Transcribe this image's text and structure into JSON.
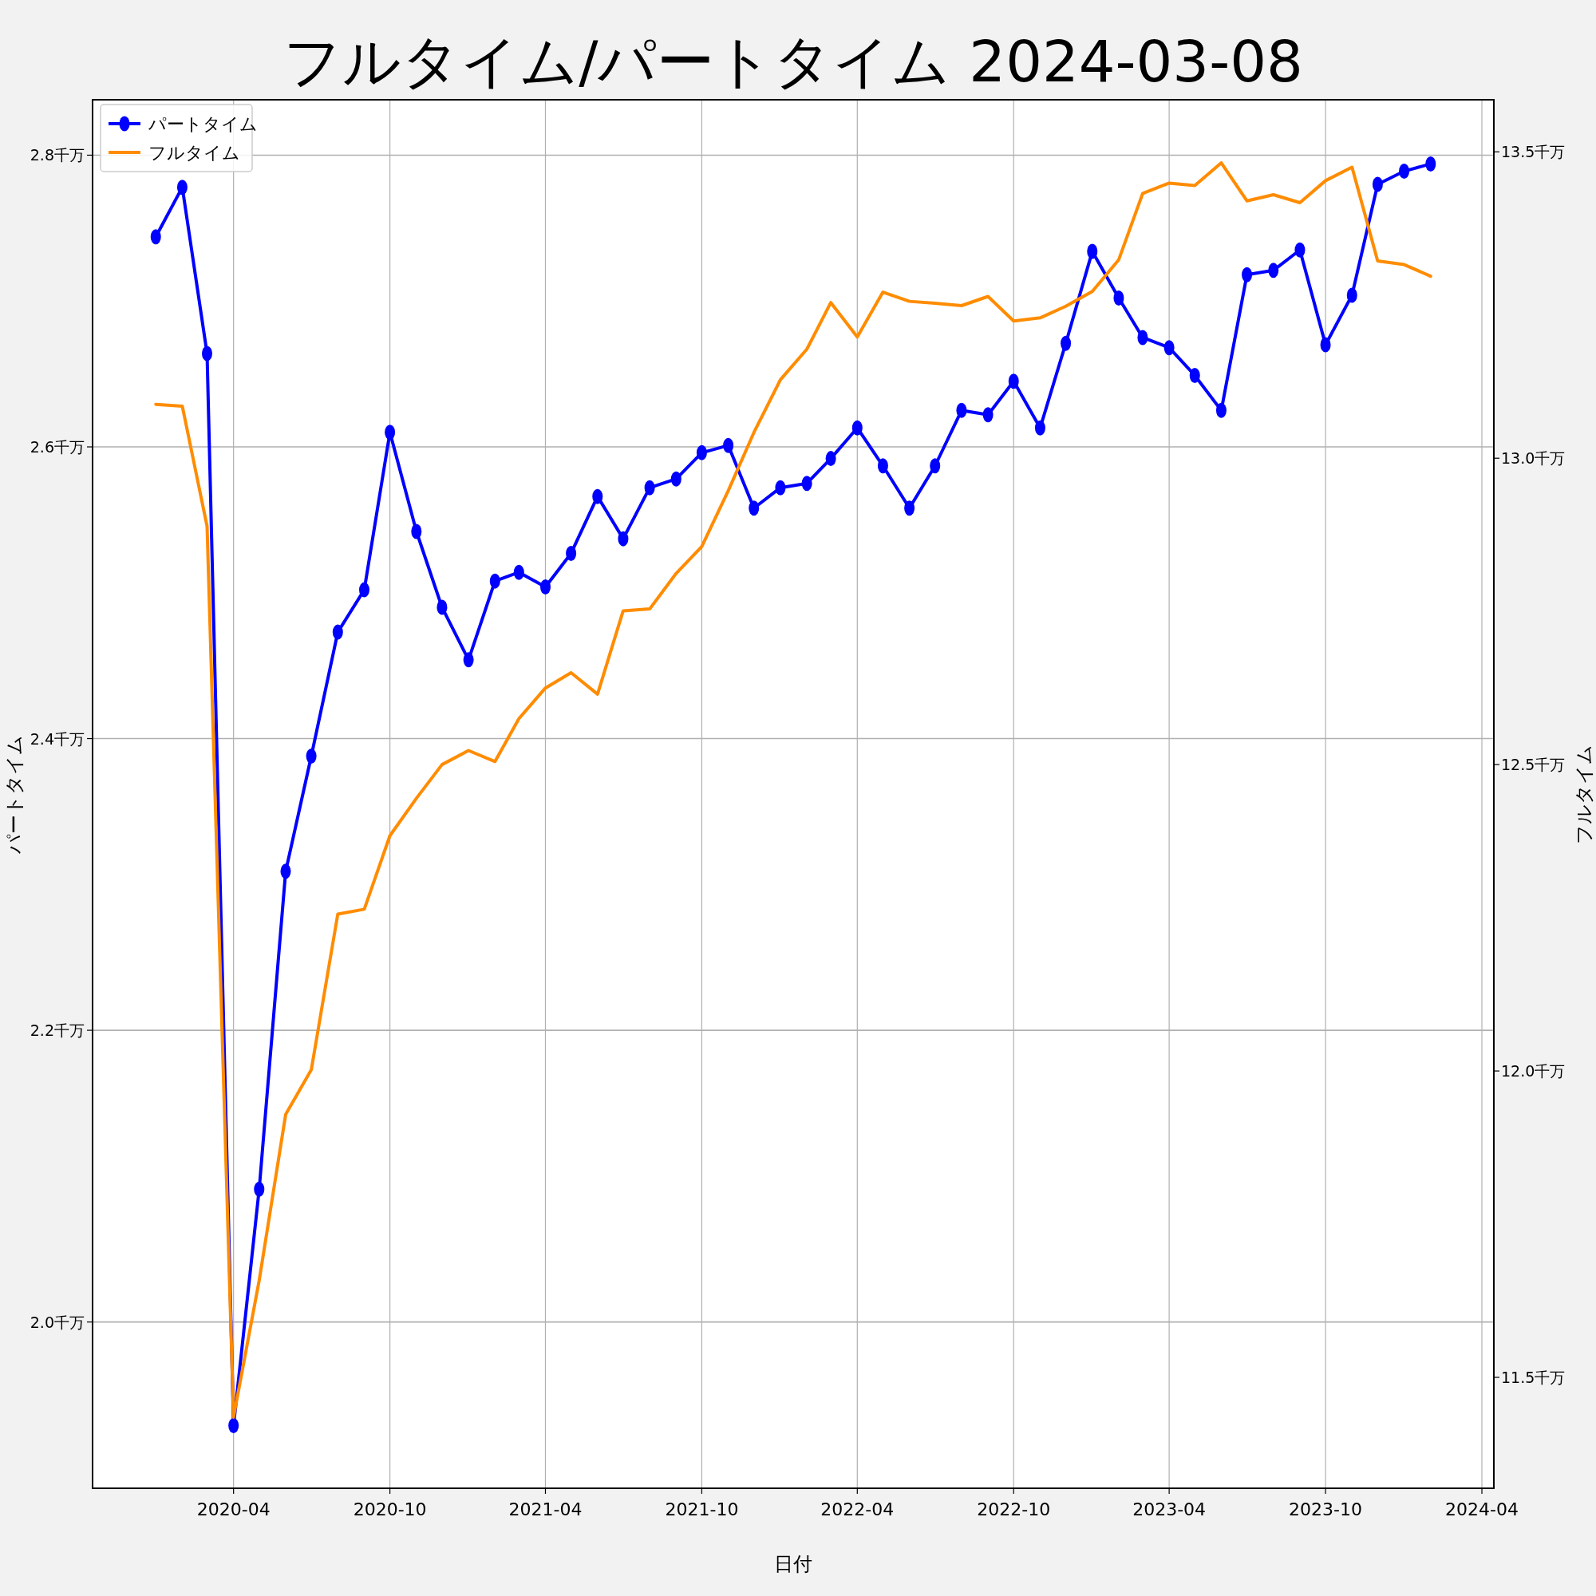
{
  "chart_data": {
    "type": "line",
    "title": "フルタイム/パートタイム 2024-03-08",
    "xlabel": "日付",
    "ylabel": "パートタイム",
    "y2label": "フルタイム",
    "x": [
      "2020-01",
      "2020-02",
      "2020-03",
      "2020-04",
      "2020-05",
      "2020-06",
      "2020-07",
      "2020-08",
      "2020-09",
      "2020-10",
      "2020-11",
      "2020-12",
      "2021-01",
      "2021-02",
      "2021-03",
      "2021-04",
      "2021-05",
      "2021-06",
      "2021-07",
      "2021-08",
      "2021-09",
      "2021-10",
      "2021-11",
      "2021-12",
      "2022-01",
      "2022-02",
      "2022-03",
      "2022-04",
      "2022-05",
      "2022-06",
      "2022-07",
      "2022-08",
      "2022-09",
      "2022-10",
      "2022-11",
      "2022-12",
      "2023-01",
      "2023-02",
      "2023-03",
      "2023-04",
      "2023-05",
      "2023-06",
      "2023-07",
      "2023-08",
      "2023-09",
      "2023-10",
      "2023-11",
      "2023-12",
      "2024-01",
      "2024-02"
    ],
    "series": [
      {
        "name": "パートタイム",
        "color": "#0000ff",
        "marker": "circle",
        "values": [
          2.744,
          2.778,
          2.664,
          1.929,
          2.091,
          2.309,
          2.388,
          2.473,
          2.502,
          2.61,
          2.542,
          2.49,
          2.454,
          2.508,
          2.514,
          2.504,
          2.527,
          2.566,
          2.537,
          2.572,
          2.578,
          2.596,
          2.601,
          2.558,
          2.572,
          2.575,
          2.592,
          2.613,
          2.587,
          2.558,
          2.587,
          2.625,
          2.622,
          2.645,
          2.613,
          2.671,
          2.734,
          2.702,
          2.675,
          2.668,
          2.649,
          2.625,
          2.718,
          2.721,
          2.735,
          2.67,
          2.704,
          2.78,
          2.789,
          2.794
        ]
      },
      {
        "name": "フルタイム",
        "color": "#ff8c00",
        "axis": "y2",
        "values": [
          13.088,
          13.085,
          12.889,
          11.435,
          11.658,
          11.929,
          12.002,
          12.256,
          12.264,
          12.384,
          12.445,
          12.5,
          12.523,
          12.505,
          12.575,
          12.625,
          12.65,
          12.615,
          12.751,
          12.754,
          12.812,
          12.856,
          12.947,
          13.042,
          13.128,
          13.178,
          13.254,
          13.198,
          13.271,
          13.256,
          13.253,
          13.249,
          13.264,
          13.224,
          13.229,
          13.248,
          13.272,
          13.324,
          13.432,
          13.449,
          13.445,
          13.482,
          13.42,
          13.43,
          13.417,
          13.453,
          13.475,
          13.322,
          13.316,
          13.297
        ]
      }
    ],
    "xlim": [
      "2019-10-19",
      "2024-04-15"
    ],
    "xticks": [
      "2020-04",
      "2020-10",
      "2021-04",
      "2021-10",
      "2022-04",
      "2022-10",
      "2023-04",
      "2023-10",
      "2024-04"
    ],
    "ylim": [
      1.886,
      2.838
    ],
    "yticks": [
      {
        "value": 2.0,
        "label": "2.0千万"
      },
      {
        "value": 2.2,
        "label": "2.2千万"
      },
      {
        "value": 2.4,
        "label": "2.4千万"
      },
      {
        "value": 2.6,
        "label": "2.6千万"
      },
      {
        "value": 2.8,
        "label": "2.8千万"
      }
    ],
    "y2lim": [
      11.319,
      13.585
    ],
    "y2ticks": [
      {
        "value": 11.5,
        "label": "11.5千万"
      },
      {
        "value": 12.0,
        "label": "12.0千万"
      },
      {
        "value": 12.5,
        "label": "12.5千万"
      },
      {
        "value": 13.0,
        "label": "13.0千万"
      },
      {
        "value": 13.5,
        "label": "13.5千万"
      }
    ],
    "grid": true,
    "legend": "top left",
    "line_style": "solid"
  }
}
